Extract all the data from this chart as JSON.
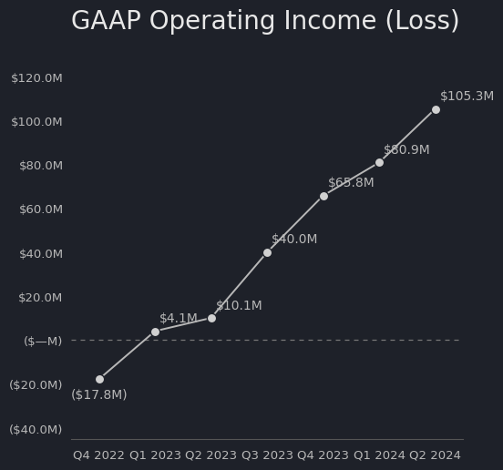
{
  "title": "GAAP Operating Income (Loss)",
  "categories": [
    "Q4 2022",
    "Q1 2023",
    "Q2 2023",
    "Q3 2023",
    "Q4 2023",
    "Q1 2024",
    "Q2 2024"
  ],
  "values": [
    -17.8,
    4.1,
    10.1,
    40.0,
    65.8,
    80.9,
    105.3
  ],
  "labels": [
    "($17.8M)",
    "$4.1M",
    "$10.1M",
    "$40.0M",
    "$65.8M",
    "$80.9M",
    "$105.3M"
  ],
  "ylim": [
    -45,
    135
  ],
  "yticks": [
    -40,
    -20,
    0,
    20,
    40,
    60,
    80,
    100,
    120
  ],
  "ytick_labels": [
    "($40.0M)",
    "($20.0M)",
    "($—M)",
    "$20.0M",
    "$40.0M",
    "$60.0M",
    "$80.0M",
    "$100.0M",
    "$120.0M"
  ],
  "background_color": "#1e2129",
  "line_color": "#b8b8b8",
  "marker_color": "#d0d0d0",
  "text_color": "#b8b8b8",
  "title_color": "#e8e8e8",
  "spine_color": "#555555",
  "zero_line_color": "#777777",
  "title_fontsize": 20,
  "tick_fontsize": 9.5,
  "label_fontsize": 10
}
